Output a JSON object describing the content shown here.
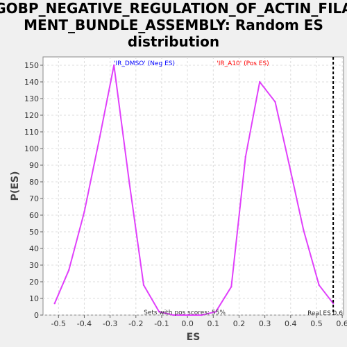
{
  "chart_data": {
    "type": "line",
    "title": "GOBP_NEGATIVE_REGULATION_OF_ACTIN_FILA\nMENT_BUNDLE_ASSEMBLY: Random ES\ndistribution",
    "xlabel": "ES",
    "ylabel": "P(ES)",
    "xlim": [
      -0.56,
      0.605
    ],
    "ylim": [
      0,
      155
    ],
    "x_ticks": [
      -0.5,
      -0.4,
      -0.3,
      -0.2,
      -0.1,
      0.0,
      0.1,
      0.2,
      0.3,
      0.4,
      0.5,
      0.6
    ],
    "x_tick_labels": [
      "-0.5",
      "-0.4",
      "-0.3",
      "-0.2",
      "-0.1",
      "0.0",
      "0.1",
      "0.2",
      "0.3",
      "0.4",
      "0.5",
      "0.6"
    ],
    "y_ticks": [
      0,
      10,
      20,
      30,
      40,
      50,
      60,
      70,
      80,
      90,
      100,
      110,
      120,
      130,
      140,
      150
    ],
    "grid": true,
    "series": [
      {
        "color": "#e040fb",
        "x": [
          -0.515,
          -0.46,
          -0.4,
          -0.34,
          -0.285,
          -0.225,
          -0.17,
          -0.11,
          -0.055,
          0.0,
          0.055,
          0.11,
          0.17,
          0.225,
          0.28,
          0.34,
          0.395,
          0.45,
          0.51,
          0.565
        ],
        "y": [
          7,
          27,
          62,
          107,
          150,
          79,
          18,
          2,
          0,
          0,
          0,
          2,
          17,
          95,
          140,
          128,
          90,
          51,
          18,
          7
        ]
      }
    ],
    "real_es": 0.565,
    "annotations": {
      "neg_label": "'IR_DMSO' (Neg ES)",
      "pos_label": "'IR_A10' (Pos ES)",
      "sets_label": "Sets with pos scores: 55%",
      "real_es_label": "Real ES 0.6"
    },
    "colors": {
      "neg": "#0000ff",
      "pos": "#ff0000",
      "line": "#e040fb"
    }
  }
}
